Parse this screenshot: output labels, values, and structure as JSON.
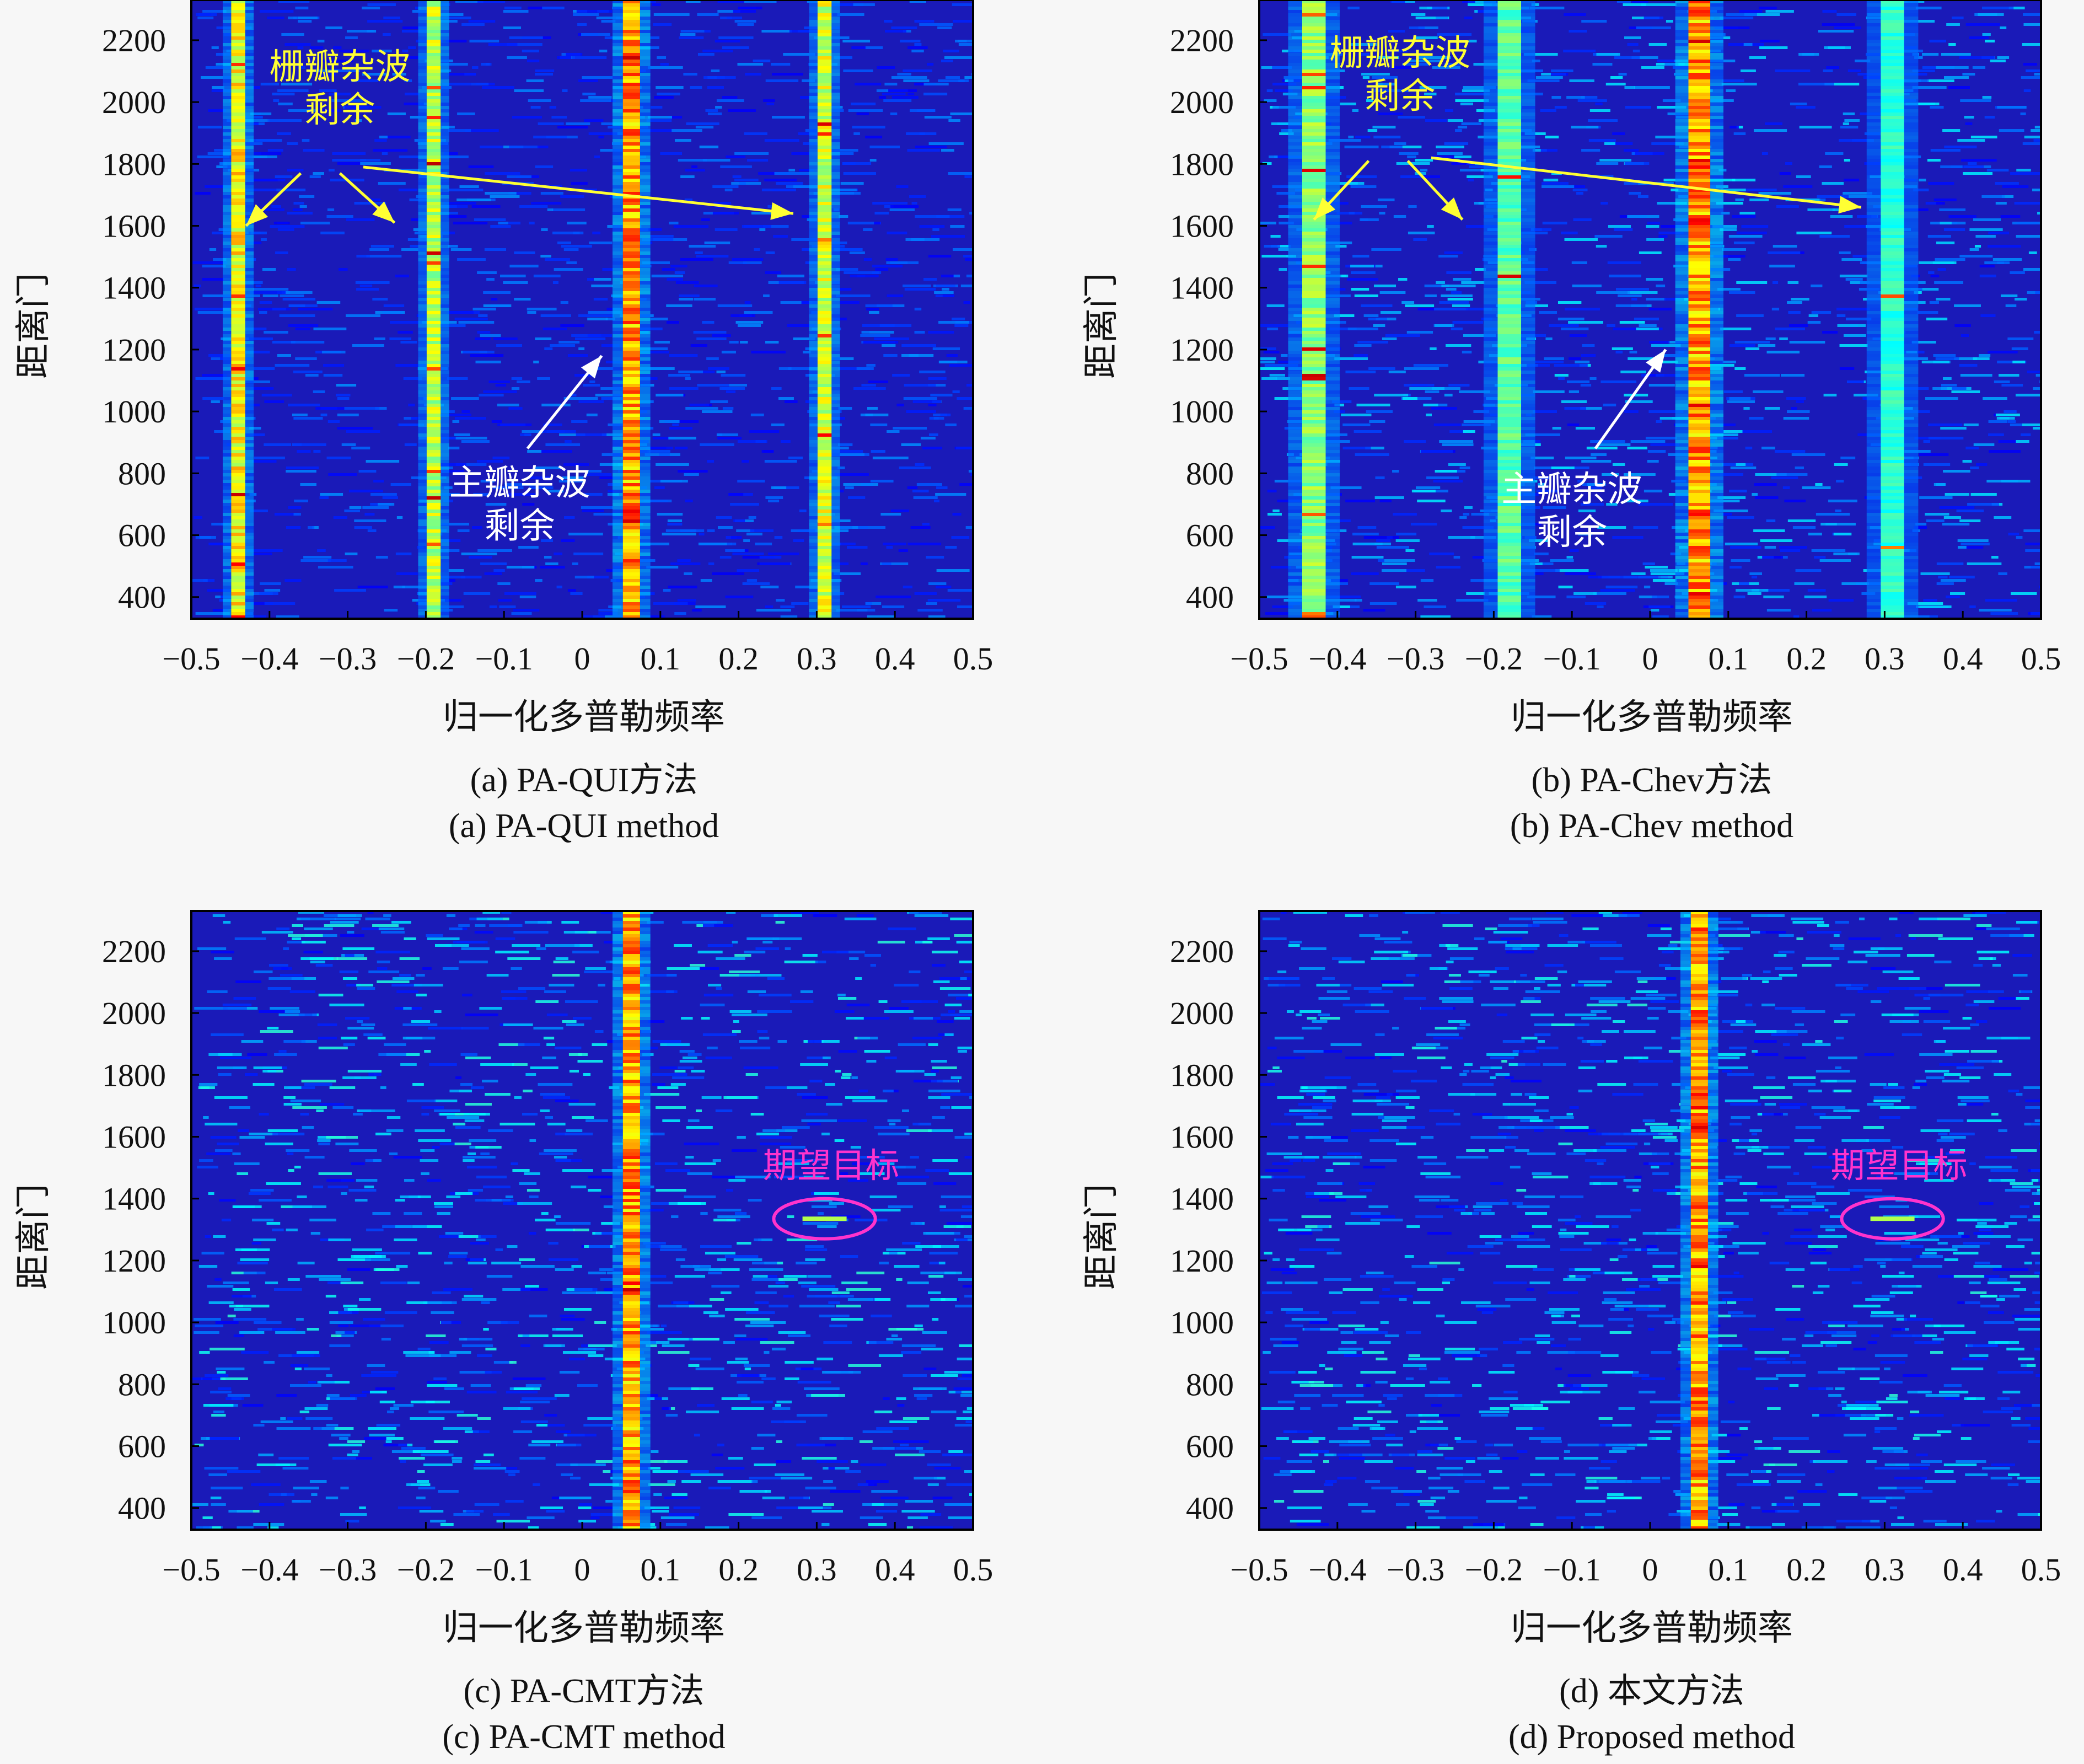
{
  "chart_data": [
    {
      "type": "heatmap",
      "caption_cn": "(a) PA-QUI方法",
      "caption_en": "(a) PA-QUI method",
      "xlabel": "归一化多普勒频率",
      "ylabel": "距离门",
      "xlim": [
        -0.5,
        0.5
      ],
      "ylim": [
        330,
        2330
      ],
      "xticks": [
        -0.5,
        -0.4,
        -0.3,
        -0.2,
        -0.1,
        0,
        0.1,
        0.2,
        0.3,
        0.4,
        0.5
      ],
      "xtick_labels": [
        "−0.5",
        "−0.4",
        "−0.3",
        "−0.2",
        "−0.1",
        "0",
        "0.1",
        "0.2",
        "0.3",
        "0.4",
        "0.5"
      ],
      "yticks": [
        400,
        600,
        800,
        1000,
        1200,
        1400,
        1600,
        1800,
        2000,
        2200
      ],
      "ytick_labels": [
        "400",
        "600",
        "800",
        "1000",
        "1200",
        "1400",
        "1600",
        "1800",
        "2000",
        "2200"
      ],
      "stripes": [
        {
          "x": -0.44,
          "width": 0.018,
          "level": 0.8
        },
        {
          "x": -0.19,
          "width": 0.018,
          "level": 0.65
        },
        {
          "x": 0.063,
          "width": 0.022,
          "level": 1.0
        },
        {
          "x": 0.31,
          "width": 0.018,
          "level": 0.7
        }
      ],
      "noise_level": 0.15,
      "annotations": [
        {
          "text": [
            "栅瓣杂波",
            "剩余"
          ],
          "color": "#ffff33",
          "x": -0.31,
          "y": 2075,
          "arrows": [
            {
              "from": [
                -0.36,
                1770
              ],
              "to": [
                -0.43,
                1600
              ]
            },
            {
              "from": [
                -0.31,
                1770
              ],
              "to": [
                -0.24,
                1610
              ]
            },
            {
              "from": [
                -0.28,
                1790
              ],
              "to": [
                0.27,
                1640
              ]
            }
          ]
        },
        {
          "text": [
            "主瓣杂波",
            "剩余"
          ],
          "color": "#ffffff",
          "x": -0.08,
          "y": 730,
          "arrows": [
            {
              "from": [
                -0.07,
                880
              ],
              "to": [
                0.025,
                1180
              ]
            }
          ]
        }
      ]
    },
    {
      "type": "heatmap",
      "caption_cn": "(b) PA-Chev方法",
      "caption_en": "(b) PA-Chev method",
      "xlabel": "归一化多普勒频率",
      "ylabel": "距离门",
      "xlim": [
        -0.5,
        0.5
      ],
      "ylim": [
        330,
        2330
      ],
      "xticks": [
        -0.5,
        -0.4,
        -0.3,
        -0.2,
        -0.1,
        0,
        0.1,
        0.2,
        0.3,
        0.4,
        0.5
      ],
      "xtick_labels": [
        "−0.5",
        "−0.4",
        "−0.3",
        "−0.2",
        "−0.1",
        "0",
        "0.1",
        "0.2",
        "0.3",
        "0.4",
        "0.5"
      ],
      "yticks": [
        400,
        600,
        800,
        1000,
        1200,
        1400,
        1600,
        1800,
        2000,
        2200
      ],
      "ytick_labels": [
        "400",
        "600",
        "800",
        "1000",
        "1200",
        "1400",
        "1600",
        "1800",
        "2000",
        "2200"
      ],
      "stripes": [
        {
          "x": -0.43,
          "width": 0.03,
          "level": 0.55
        },
        {
          "x": -0.18,
          "width": 0.03,
          "level": 0.45
        },
        {
          "x": 0.063,
          "width": 0.028,
          "level": 1.0
        },
        {
          "x": 0.31,
          "width": 0.03,
          "level": 0.35
        }
      ],
      "noise_level": 0.25,
      "annotations": [
        {
          "text": [
            "栅瓣杂波",
            "剩余"
          ],
          "color": "#ffff33",
          "x": -0.32,
          "y": 2120,
          "arrows": [
            {
              "from": [
                -0.36,
                1810
              ],
              "to": [
                -0.43,
                1620
              ]
            },
            {
              "from": [
                -0.31,
                1810
              ],
              "to": [
                -0.24,
                1620
              ]
            },
            {
              "from": [
                -0.28,
                1820
              ],
              "to": [
                0.27,
                1660
              ]
            }
          ]
        },
        {
          "text": [
            "主瓣杂波",
            "剩余"
          ],
          "color": "#ffffff",
          "x": -0.1,
          "y": 710,
          "arrows": [
            {
              "from": [
                -0.07,
                880
              ],
              "to": [
                0.02,
                1200
              ]
            }
          ]
        }
      ]
    },
    {
      "type": "heatmap",
      "caption_cn": "(c) PA-CMT方法",
      "caption_en": "(c) PA-CMT method",
      "xlabel": "归一化多普勒频率",
      "ylabel": "距离门",
      "xlim": [
        -0.5,
        0.5
      ],
      "ylim": [
        330,
        2330
      ],
      "xticks": [
        -0.5,
        -0.4,
        -0.3,
        -0.2,
        -0.1,
        0,
        0.1,
        0.2,
        0.3,
        0.4,
        0.5
      ],
      "xtick_labels": [
        "−0.5",
        "−0.4",
        "−0.3",
        "−0.2",
        "−0.1",
        "0",
        "0.1",
        "0.2",
        "0.3",
        "0.4",
        "0.5"
      ],
      "yticks": [
        400,
        600,
        800,
        1000,
        1200,
        1400,
        1600,
        1800,
        2000,
        2200
      ],
      "ytick_labels": [
        "400",
        "600",
        "800",
        "1000",
        "1200",
        "1400",
        "1600",
        "1800",
        "2000",
        "2200"
      ],
      "stripes": [
        {
          "x": 0.063,
          "width": 0.022,
          "level": 1.0
        }
      ],
      "noise_level": 0.3,
      "target": {
        "x": 0.31,
        "y": 1335,
        "rx": 0.065,
        "ry": 65,
        "color": "#ff33cc",
        "label": "期望目标"
      },
      "annotations": []
    },
    {
      "type": "heatmap",
      "caption_cn": "(d) 本文方法",
      "caption_en": "(d) Proposed method",
      "xlabel": "归一化多普勒频率",
      "ylabel": "距离门",
      "xlim": [
        -0.5,
        0.5
      ],
      "ylim": [
        330,
        2330
      ],
      "xticks": [
        -0.5,
        -0.4,
        -0.3,
        -0.2,
        -0.1,
        0,
        0.1,
        0.2,
        0.3,
        0.4,
        0.5
      ],
      "xtick_labels": [
        "−0.5",
        "−0.4",
        "−0.3",
        "−0.2",
        "−0.1",
        "0",
        "0.1",
        "0.2",
        "0.3",
        "0.4",
        "0.5"
      ],
      "yticks": [
        400,
        600,
        800,
        1000,
        1200,
        1400,
        1600,
        1800,
        2000,
        2200
      ],
      "ytick_labels": [
        "400",
        "600",
        "800",
        "1000",
        "1200",
        "1400",
        "1600",
        "1800",
        "2000",
        "2200"
      ],
      "stripes": [
        {
          "x": 0.063,
          "width": 0.022,
          "level": 1.0
        }
      ],
      "noise_level": 0.3,
      "target": {
        "x": 0.31,
        "y": 1335,
        "rx": 0.065,
        "ry": 65,
        "color": "#ff33cc",
        "label": "期望目标"
      },
      "annotations": []
    }
  ]
}
